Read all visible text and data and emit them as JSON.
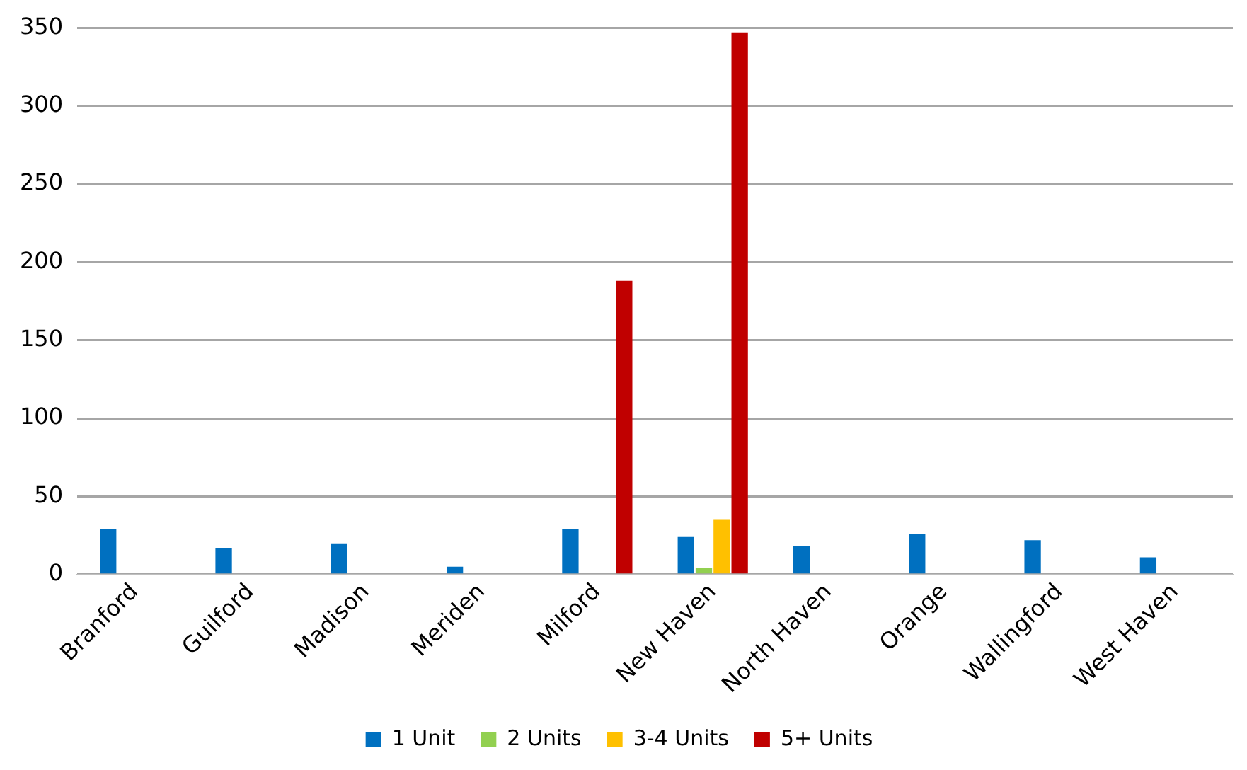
{
  "chart_data": {
    "type": "bar",
    "categories": [
      "Branford",
      "Guilford",
      "Madison",
      "Meriden",
      "Milford",
      "New Haven",
      "North Haven",
      "Orange",
      "Wallingford",
      "West Haven"
    ],
    "series": [
      {
        "name": "1 Unit",
        "color": "#0070c0",
        "values": [
          29,
          17,
          20,
          5,
          29,
          24,
          18,
          26,
          22,
          11
        ]
      },
      {
        "name": "2 Units",
        "color": "#92d050",
        "values": [
          0,
          0,
          0,
          0,
          0,
          4,
          0,
          0,
          0,
          0
        ]
      },
      {
        "name": "3-4 Units",
        "color": "#ffc000",
        "values": [
          0,
          0,
          0,
          0,
          0,
          35,
          0,
          0,
          0,
          0
        ]
      },
      {
        "name": "5+ Units",
        "color": "#c00000",
        "values": [
          0,
          0,
          0,
          0,
          188,
          347,
          0,
          0,
          0,
          0
        ]
      }
    ],
    "ylim": [
      0,
      350
    ],
    "yticks": [
      0,
      50,
      100,
      150,
      200,
      250,
      300,
      350
    ],
    "grid": "y",
    "legend": "bottom"
  }
}
